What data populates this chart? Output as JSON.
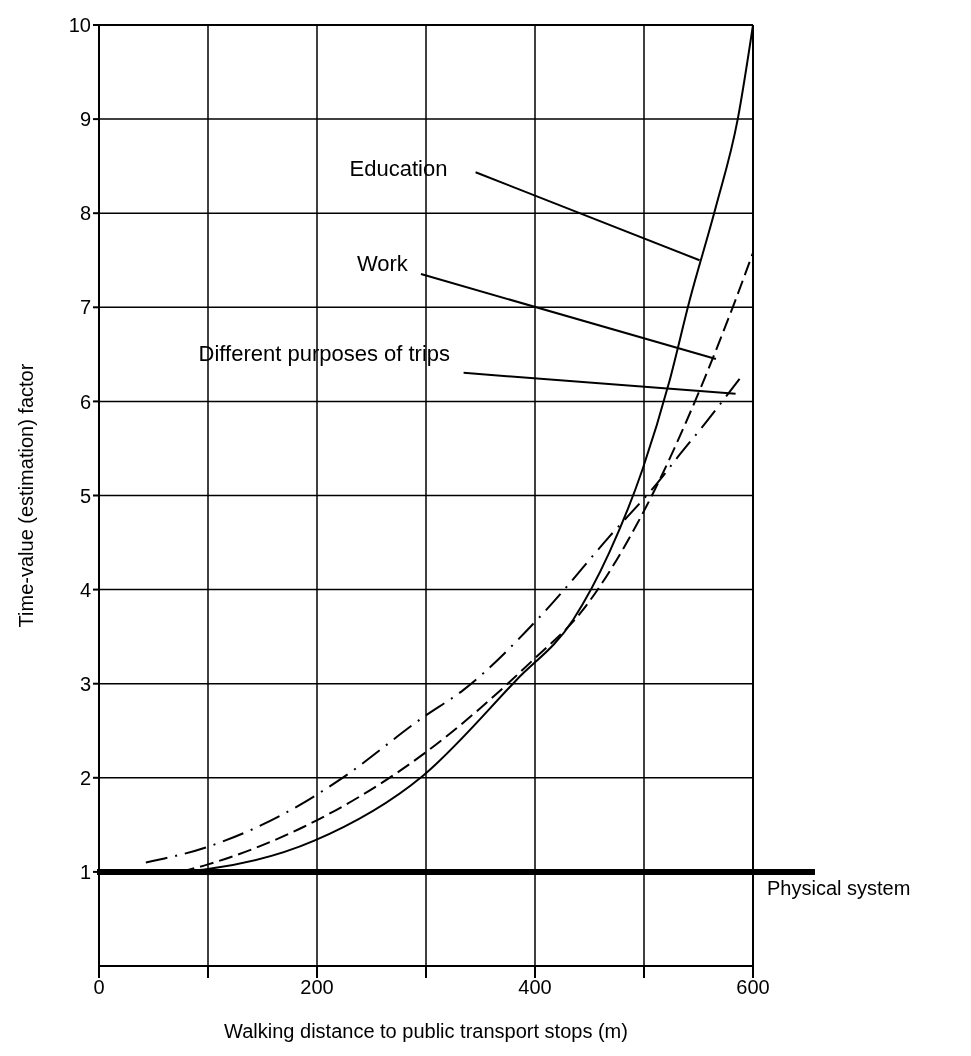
{
  "chart_data": {
    "type": "line",
    "xlabel": "Walking distance to public transport stops (m)",
    "ylabel": "Time-value (estimation) factor",
    "xlim": [
      0,
      600
    ],
    "xticks": [
      0,
      {
        "value": 100,
        "label": null
      },
      200,
      {
        "value": 300,
        "label": null
      },
      400,
      {
        "value": 500,
        "label": null
      },
      600
    ],
    "ylim": [
      0,
      10
    ],
    "yticks": [
      1,
      2,
      3,
      4,
      5,
      6,
      7,
      8,
      9,
      10
    ],
    "grid": true,
    "legend": false,
    "marker": "none",
    "series": [
      {
        "color": "#000000",
        "line_style": "solid",
        "x": [
          75,
          100,
          197,
          297,
          383,
          435,
          468,
          499,
          523,
          542,
          566,
          586,
          600
        ],
        "values": [
          1.0,
          1.03,
          1.33,
          2.02,
          3.04,
          3.68,
          4.39,
          5.29,
          6.2,
          7.08,
          8.07,
          9.0,
          10.0
        ]
      },
      {
        "color": "#000000",
        "line_style": "dashed",
        "x": [
          75,
          100,
          188,
          295,
          398,
          443,
          497,
          554,
          584,
          600
        ],
        "values": [
          1.0,
          1.08,
          1.48,
          2.23,
          3.25,
          3.77,
          4.77,
          6.2,
          7.08,
          7.58
        ]
      },
      {
        "color": "#000000",
        "line_style": "dashdot",
        "x": [
          43,
          98,
          184,
          221,
          297,
          335,
          406,
          468,
          517,
          529,
          557,
          589
        ],
        "values": [
          1.1,
          1.26,
          1.71,
          1.98,
          2.64,
          2.94,
          3.73,
          4.56,
          5.2,
          5.38,
          5.78,
          6.26
        ]
      }
    ],
    "ref_lines": [
      {
        "axis": "y",
        "value": 1,
        "label": "Physical system",
        "color": "#000000"
      }
    ],
    "annotations": [
      {
        "text": "Education",
        "x": 551,
        "y": 7.5
      },
      {
        "text": "Work",
        "x": 566,
        "y": 6.45
      },
      {
        "text": "Different purposes of trips",
        "x": 584,
        "y": 6.08
      }
    ]
  }
}
